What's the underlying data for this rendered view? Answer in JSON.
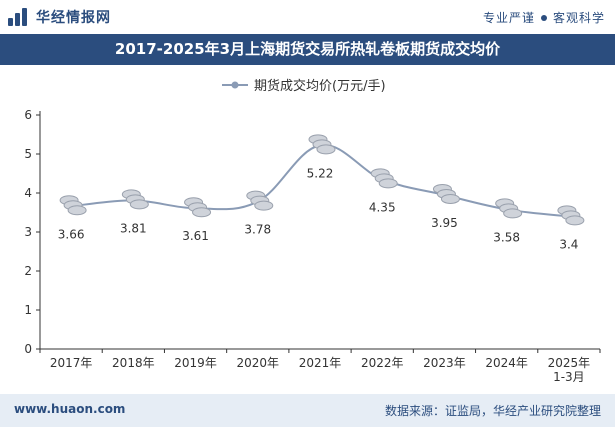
{
  "header": {
    "brand": "华经情报网",
    "slogan_left": "专业严谨",
    "slogan_right": "客观科学"
  },
  "footer": {
    "website": "www.huaon.com",
    "source": "数据来源：证监局，华经产业研究院整理"
  },
  "colors": {
    "brand": "#2b4d7e",
    "line": "#8a9bb5",
    "axis": "#333333",
    "footer_bg": "#e6edf5"
  },
  "chart_data": {
    "type": "line",
    "title": "2017-2025年3月上海期货交易所热轧卷板期货成交均价",
    "xlabel": "",
    "ylabel": "",
    "categories": [
      "2017年",
      "2018年",
      "2019年",
      "2020年",
      "2021年",
      "2022年",
      "2023年",
      "2024年",
      "2025年\n1-3月"
    ],
    "series": [
      {
        "name": "期货成交均价(万元/手)",
        "values": [
          3.66,
          3.81,
          3.61,
          3.78,
          5.22,
          4.35,
          3.95,
          3.58,
          3.4
        ]
      }
    ],
    "data_labels": [
      "3.66",
      "3.81",
      "3.61",
      "3.78",
      "5.22",
      "4.35",
      "3.95",
      "3.58",
      "3.4"
    ],
    "ylim": [
      0,
      6
    ],
    "yticks": [
      0,
      1,
      2,
      3,
      4,
      5,
      6
    ],
    "legend_position": "top-center",
    "grid": false
  }
}
